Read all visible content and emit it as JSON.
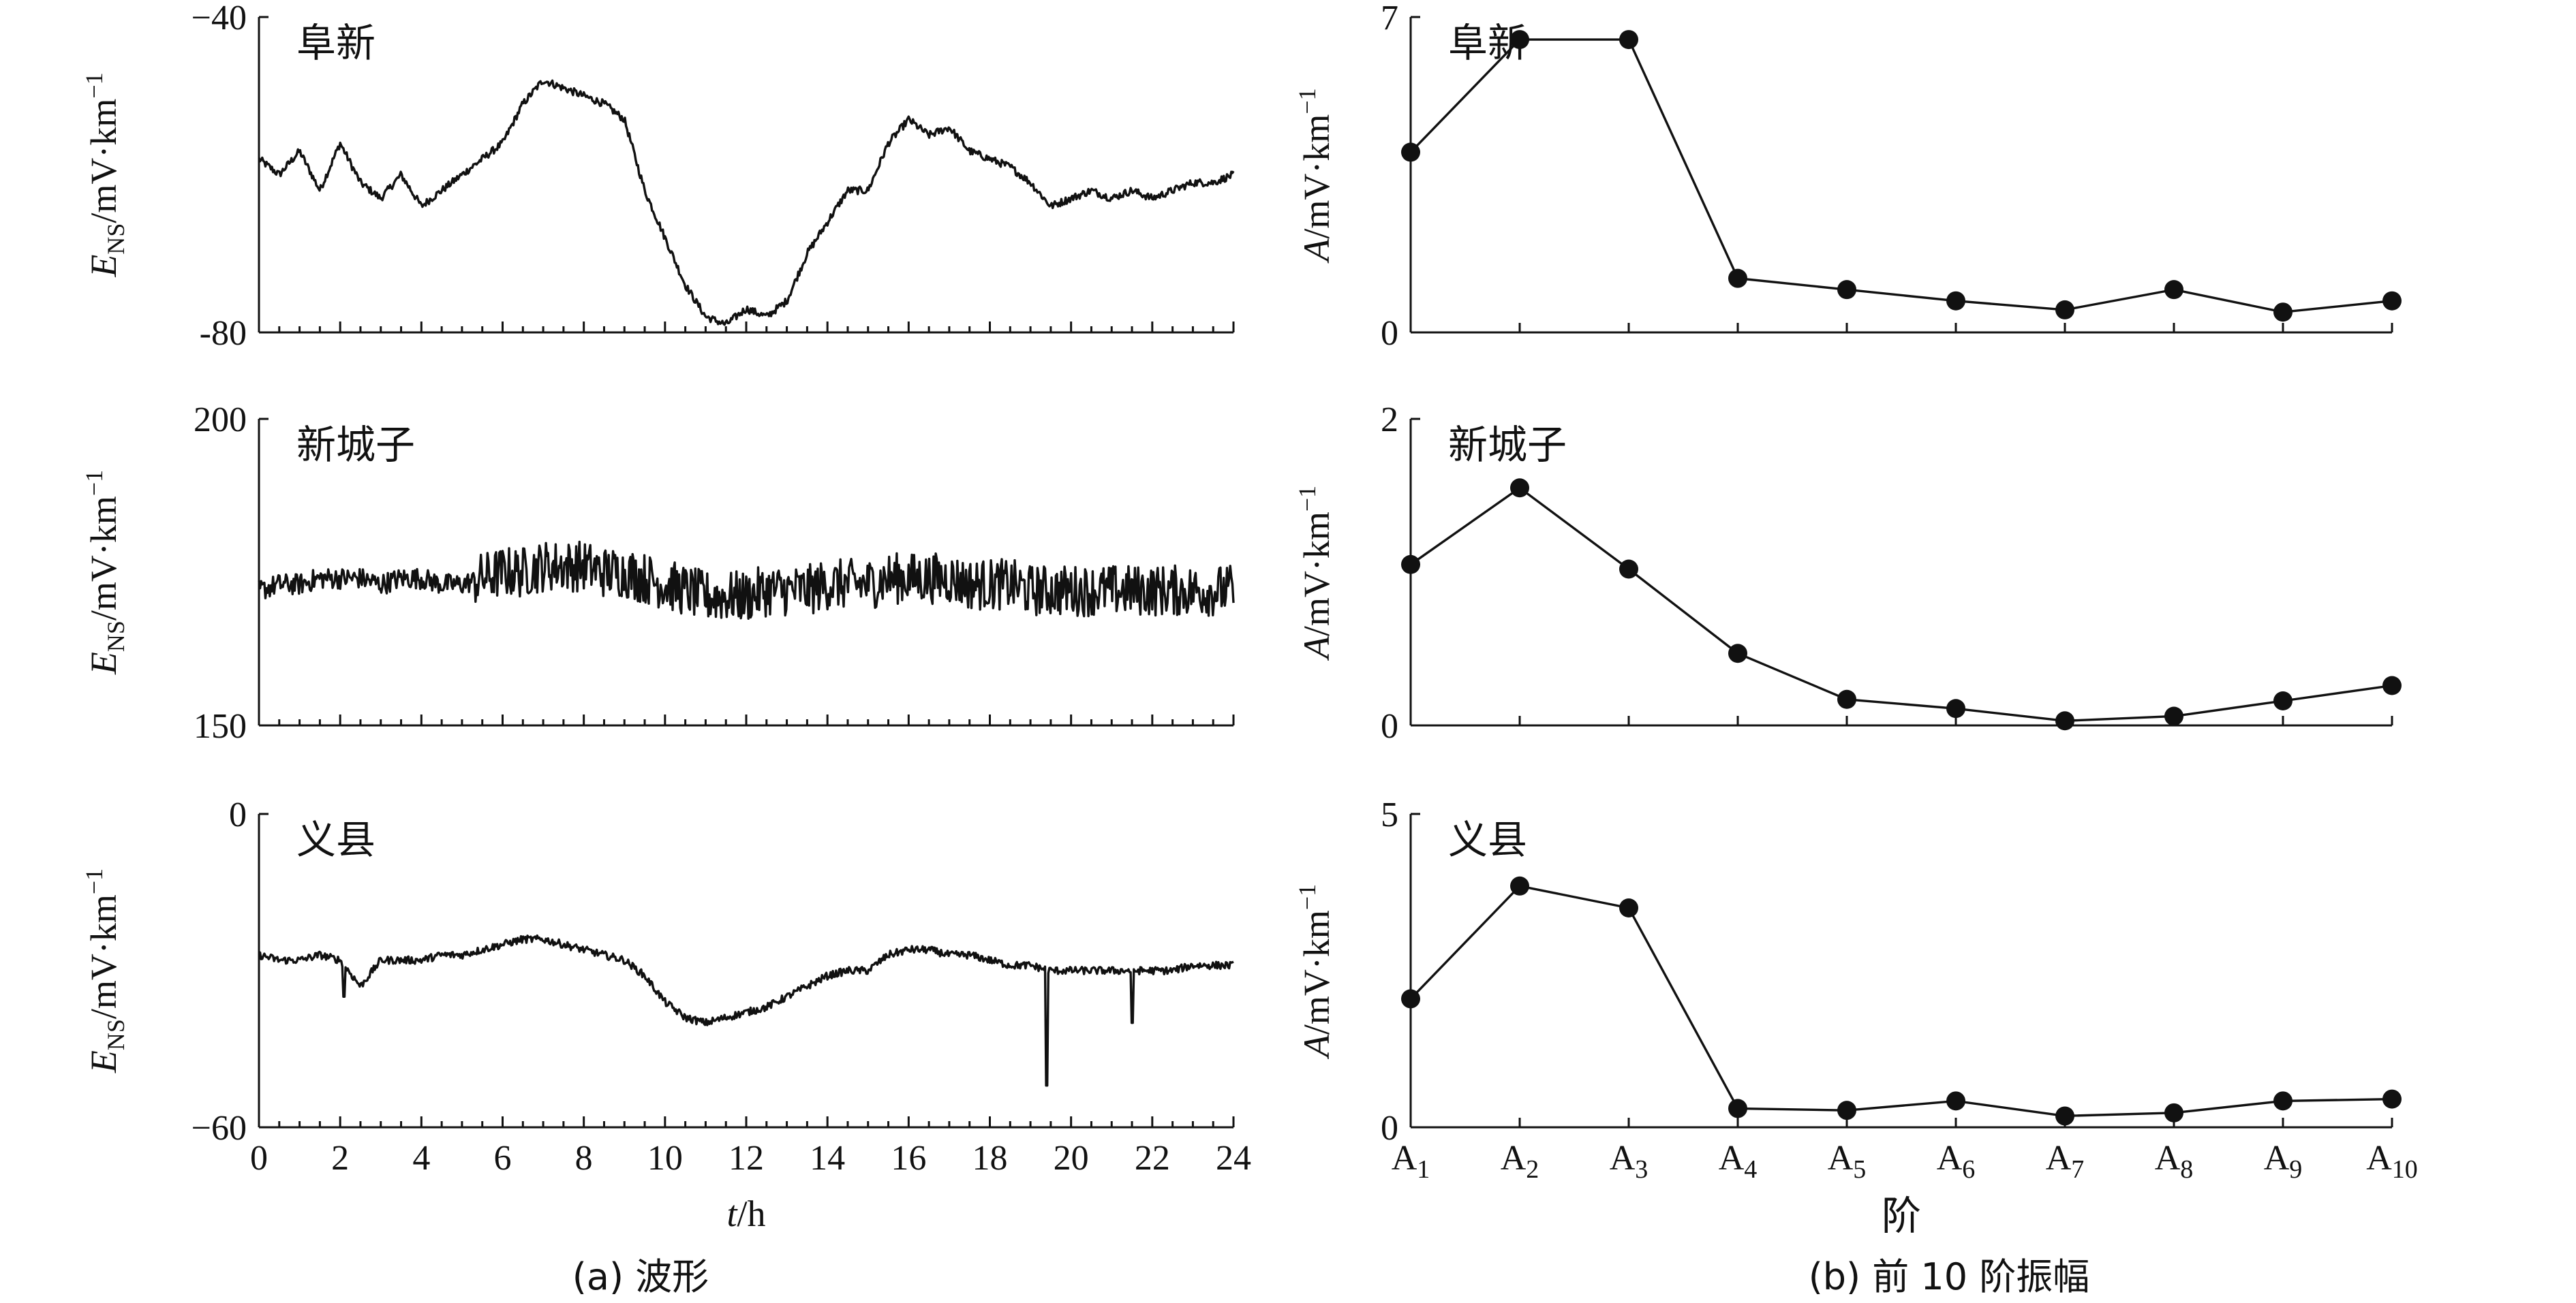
{
  "colors": {
    "ink": "#111111",
    "background": "#ffffff"
  },
  "captions": {
    "left": "(a) 波形",
    "right": "(b) 前 10 阶振幅"
  },
  "chart_data": [
    {
      "type": "line",
      "panel": "waveform",
      "station": "阜新",
      "ylabel": {
        "base": "E",
        "sub": "NS",
        "units": "/mV·km",
        "sup": "−1"
      },
      "ylim": [
        -80,
        -40
      ],
      "yticks": [
        "−40",
        "-80"
      ],
      "xlim": [
        0,
        24
      ],
      "x": [
        0,
        0.5,
        1,
        1.5,
        2,
        2.5,
        3,
        3.5,
        4,
        4.5,
        5,
        5.5,
        6,
        6.5,
        7,
        7.5,
        8,
        8.5,
        9,
        9.5,
        10,
        10.5,
        11,
        11.5,
        12,
        12.5,
        13,
        13.5,
        14,
        14.5,
        15,
        15.5,
        16,
        16.5,
        17,
        17.5,
        18,
        18.5,
        19,
        19.5,
        20,
        20.5,
        21,
        21.5,
        22,
        22.5,
        23,
        23.5,
        24
      ],
      "y": [
        -58,
        -60,
        -57,
        -62,
        -56,
        -61,
        -63,
        -60,
        -64,
        -62,
        -60,
        -58,
        -56,
        -51,
        -48,
        -49,
        -50,
        -51,
        -53,
        -62,
        -68,
        -74,
        -78,
        -79,
        -77,
        -78,
        -76,
        -70,
        -66,
        -62,
        -62,
        -56,
        -53,
        -55,
        -54,
        -57,
        -58,
        -59,
        -61,
        -64,
        -63,
        -62,
        -63,
        -62,
        -63,
        -62,
        -61,
        -61,
        -60
      ]
    },
    {
      "type": "line",
      "panel": "waveform",
      "station": "新城子",
      "ylabel": {
        "base": "E",
        "sub": "NS",
        "units": "/mV·km",
        "sup": "−1"
      },
      "ylim": [
        150,
        200
      ],
      "yticks": [
        "200",
        "150"
      ],
      "xlim": [
        0,
        24
      ],
      "x": [
        0,
        0.5,
        1,
        1.5,
        2,
        2.5,
        3,
        3.5,
        4,
        4.5,
        5,
        5.5,
        6,
        6.5,
        7,
        7.5,
        8,
        8.5,
        9,
        9.5,
        10,
        10.5,
        11,
        11.5,
        12,
        12.5,
        13,
        13.5,
        14,
        14.5,
        15,
        15.5,
        16,
        16.5,
        17,
        17.5,
        18,
        18.5,
        19,
        19.5,
        20,
        20.5,
        21,
        21.5,
        22,
        22.5,
        23,
        23.5,
        24
      ],
      "y": [
        172,
        173,
        173,
        174,
        174,
        174,
        173,
        174,
        174,
        173,
        173,
        174,
        175,
        175,
        176,
        176,
        176,
        175,
        175,
        174,
        173,
        172,
        171,
        171,
        171,
        172,
        172,
        172,
        173,
        173,
        173,
        174,
        174,
        174,
        174,
        173,
        173,
        173,
        172,
        172,
        172,
        172,
        172,
        172,
        172,
        172,
        172,
        172,
        172
      ]
    },
    {
      "type": "line",
      "panel": "waveform",
      "station": "义县",
      "ylabel": {
        "base": "E",
        "sub": "NS",
        "units": "/mV·km",
        "sup": "−1"
      },
      "ylim": [
        -60,
        0
      ],
      "yticks": [
        "0",
        "−60"
      ],
      "xlim": [
        0,
        24
      ],
      "xticks": [
        0,
        2,
        4,
        6,
        8,
        10,
        12,
        14,
        16,
        18,
        20,
        22,
        24
      ],
      "xlabel": {
        "var": "t",
        "units": "/h"
      },
      "x": [
        0,
        0.5,
        1,
        1.5,
        2,
        2.5,
        3,
        3.5,
        4,
        4.5,
        5,
        5.5,
        6,
        6.5,
        7,
        7.5,
        8,
        8.5,
        9,
        9.5,
        10,
        10.5,
        11,
        11.5,
        12,
        12.5,
        13,
        13.5,
        14,
        14.5,
        15,
        15.5,
        16,
        16.5,
        17,
        17.5,
        18,
        18.5,
        19,
        19.5,
        20,
        20.5,
        21,
        21.5,
        22,
        22.5,
        23,
        23.5,
        24
      ],
      "y": [
        -27,
        -28,
        -28,
        -27,
        -28,
        -33,
        -28,
        -28,
        -28,
        -27,
        -27,
        -26,
        -25,
        -24,
        -24,
        -25,
        -26,
        -27,
        -28,
        -31,
        -36,
        -39,
        -40,
        -39,
        -38,
        -37,
        -35,
        -33,
        -31,
        -30,
        -30,
        -27,
        -26,
        -26,
        -27,
        -27,
        -28,
        -29,
        -29,
        -30,
        -30,
        -30,
        -30,
        -30,
        -30,
        -30,
        -29,
        -29,
        -29
      ],
      "spikes": [
        {
          "x": 19.4,
          "y": -52
        },
        {
          "x": 21.5,
          "y": -40
        },
        {
          "x": 2.1,
          "y": -35
        }
      ]
    },
    {
      "type": "line",
      "panel": "amplitude",
      "station": "阜新",
      "ylabel": {
        "base": "A",
        "units": "/mV·km",
        "sup": "−1"
      },
      "ylim": [
        0,
        7
      ],
      "yticks": [
        "7",
        "0"
      ],
      "categories": [
        "A1",
        "A2",
        "A3",
        "A4",
        "A5",
        "A6",
        "A7",
        "A8",
        "A9",
        "A10"
      ],
      "values": [
        4.0,
        6.5,
        6.5,
        1.2,
        0.95,
        0.7,
        0.5,
        0.95,
        0.45,
        0.7
      ]
    },
    {
      "type": "line",
      "panel": "amplitude",
      "station": "新城子",
      "ylabel": {
        "base": "A",
        "units": "/mV·km",
        "sup": "−1"
      },
      "ylim": [
        0,
        2
      ],
      "yticks": [
        "2",
        "0"
      ],
      "categories": [
        "A1",
        "A2",
        "A3",
        "A4",
        "A5",
        "A6",
        "A7",
        "A8",
        "A9",
        "A10"
      ],
      "values": [
        1.05,
        1.55,
        1.02,
        0.47,
        0.17,
        0.11,
        0.03,
        0.06,
        0.16,
        0.26
      ]
    },
    {
      "type": "line",
      "panel": "amplitude",
      "station": "义县",
      "ylabel": {
        "base": "A",
        "units": "/mV·km",
        "sup": "−1"
      },
      "ylim": [
        0,
        5
      ],
      "yticks": [
        "5",
        "0"
      ],
      "categories": [
        "A1",
        "A2",
        "A3",
        "A4",
        "A5",
        "A6",
        "A7",
        "A8",
        "A9",
        "A10"
      ],
      "category_labels": [
        {
          "base": "A",
          "sub": "1"
        },
        {
          "base": "A",
          "sub": "2"
        },
        {
          "base": "A",
          "sub": "3"
        },
        {
          "base": "A",
          "sub": "4"
        },
        {
          "base": "A",
          "sub": "5"
        },
        {
          "base": "A",
          "sub": "6"
        },
        {
          "base": "A",
          "sub": "7"
        },
        {
          "base": "A",
          "sub": "8"
        },
        {
          "base": "A",
          "sub": "9"
        },
        {
          "base": "A",
          "sub": "10"
        }
      ],
      "xlabel": "阶",
      "values": [
        2.05,
        3.85,
        3.5,
        0.3,
        0.27,
        0.42,
        0.18,
        0.23,
        0.42,
        0.45
      ]
    }
  ]
}
